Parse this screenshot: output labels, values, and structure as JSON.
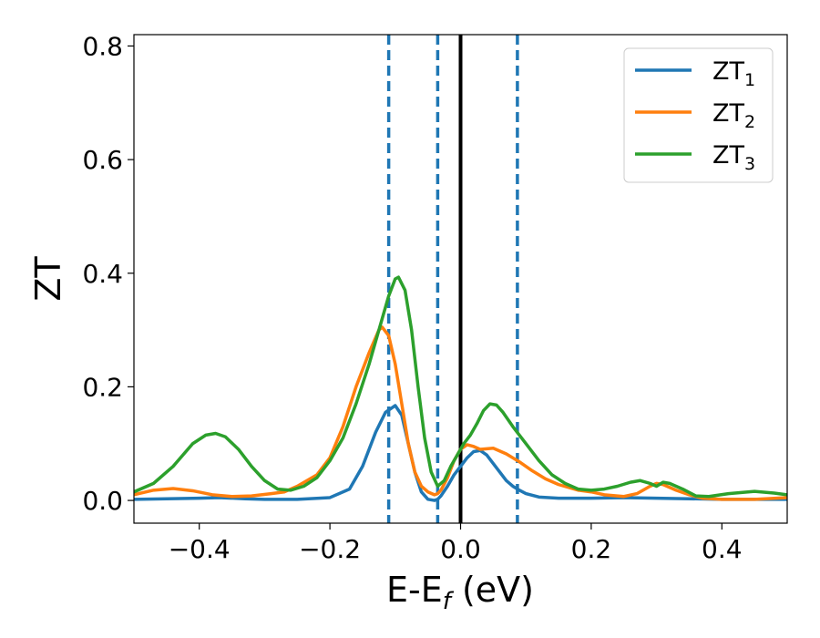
{
  "chart_data": {
    "type": "line",
    "title": "",
    "xlabel": "E-E",
    "xlabel_sub": "f",
    "xlabel_unit": " (eV)",
    "ylabel": "ZT",
    "xlim": [
      -0.5,
      0.5
    ],
    "ylim": [
      -0.04,
      0.82
    ],
    "xticks": [
      -0.4,
      -0.2,
      0.0,
      0.2,
      0.4
    ],
    "xtick_labels": [
      "−0.4",
      "−0.2",
      "0.0",
      "0.2",
      "0.4"
    ],
    "yticks": [
      0.0,
      0.2,
      0.4,
      0.6,
      0.8
    ],
    "ytick_labels": [
      "0.0",
      "0.2",
      "0.4",
      "0.6",
      "0.8"
    ],
    "grid": false,
    "legend_position": "top-right",
    "vlines": [
      {
        "x": -0.11,
        "style": "dashed",
        "color": "#1f77b4"
      },
      {
        "x": -0.035,
        "style": "dashed",
        "color": "#1f77b4"
      },
      {
        "x": 0.0,
        "style": "solid",
        "color": "#000000"
      },
      {
        "x": 0.087,
        "style": "dashed",
        "color": "#1f77b4"
      }
    ],
    "series": [
      {
        "name": "ZT",
        "name_sub": "1",
        "color": "#1f77b4",
        "points": [
          [
            -0.5,
            0.002
          ],
          [
            -0.45,
            0.003
          ],
          [
            -0.4,
            0.004
          ],
          [
            -0.37,
            0.005
          ],
          [
            -0.33,
            0.003
          ],
          [
            -0.3,
            0.002
          ],
          [
            -0.25,
            0.002
          ],
          [
            -0.2,
            0.005
          ],
          [
            -0.17,
            0.02
          ],
          [
            -0.15,
            0.06
          ],
          [
            -0.13,
            0.12
          ],
          [
            -0.115,
            0.155
          ],
          [
            -0.1,
            0.167
          ],
          [
            -0.09,
            0.15
          ],
          [
            -0.08,
            0.1
          ],
          [
            -0.07,
            0.05
          ],
          [
            -0.06,
            0.015
          ],
          [
            -0.05,
            0.002
          ],
          [
            -0.04,
            0.0
          ],
          [
            -0.035,
            0.002
          ],
          [
            -0.03,
            0.008
          ],
          [
            -0.02,
            0.025
          ],
          [
            -0.01,
            0.045
          ],
          [
            0.0,
            0.06
          ],
          [
            0.01,
            0.075
          ],
          [
            0.02,
            0.086
          ],
          [
            0.03,
            0.088
          ],
          [
            0.04,
            0.08
          ],
          [
            0.05,
            0.065
          ],
          [
            0.06,
            0.05
          ],
          [
            0.07,
            0.035
          ],
          [
            0.08,
            0.025
          ],
          [
            0.09,
            0.018
          ],
          [
            0.1,
            0.012
          ],
          [
            0.12,
            0.006
          ],
          [
            0.15,
            0.004
          ],
          [
            0.2,
            0.004
          ],
          [
            0.25,
            0.005
          ],
          [
            0.3,
            0.004
          ],
          [
            0.35,
            0.003
          ],
          [
            0.4,
            0.002
          ],
          [
            0.45,
            0.002
          ],
          [
            0.5,
            0.002
          ]
        ]
      },
      {
        "name": "ZT",
        "name_sub": "2",
        "color": "#ff7f0e",
        "points": [
          [
            -0.5,
            0.01
          ],
          [
            -0.47,
            0.018
          ],
          [
            -0.44,
            0.021
          ],
          [
            -0.41,
            0.017
          ],
          [
            -0.38,
            0.01
          ],
          [
            -0.35,
            0.007
          ],
          [
            -0.32,
            0.008
          ],
          [
            -0.29,
            0.012
          ],
          [
            -0.27,
            0.015
          ],
          [
            -0.25,
            0.025
          ],
          [
            -0.22,
            0.045
          ],
          [
            -0.2,
            0.075
          ],
          [
            -0.18,
            0.13
          ],
          [
            -0.16,
            0.2
          ],
          [
            -0.14,
            0.26
          ],
          [
            -0.125,
            0.3
          ],
          [
            -0.12,
            0.305
          ],
          [
            -0.11,
            0.29
          ],
          [
            -0.1,
            0.24
          ],
          [
            -0.09,
            0.17
          ],
          [
            -0.08,
            0.1
          ],
          [
            -0.07,
            0.05
          ],
          [
            -0.06,
            0.025
          ],
          [
            -0.05,
            0.015
          ],
          [
            -0.04,
            0.01
          ],
          [
            -0.035,
            0.012
          ],
          [
            -0.03,
            0.018
          ],
          [
            -0.02,
            0.04
          ],
          [
            -0.01,
            0.07
          ],
          [
            0.0,
            0.09
          ],
          [
            0.01,
            0.098
          ],
          [
            0.02,
            0.095
          ],
          [
            0.03,
            0.09
          ],
          [
            0.05,
            0.092
          ],
          [
            0.07,
            0.082
          ],
          [
            0.09,
            0.068
          ],
          [
            0.11,
            0.052
          ],
          [
            0.13,
            0.038
          ],
          [
            0.15,
            0.028
          ],
          [
            0.18,
            0.018
          ],
          [
            0.2,
            0.015
          ],
          [
            0.22,
            0.01
          ],
          [
            0.25,
            0.007
          ],
          [
            0.27,
            0.012
          ],
          [
            0.29,
            0.025
          ],
          [
            0.3,
            0.03
          ],
          [
            0.31,
            0.028
          ],
          [
            0.33,
            0.018
          ],
          [
            0.35,
            0.01
          ],
          [
            0.37,
            0.004
          ],
          [
            0.4,
            0.002
          ],
          [
            0.45,
            0.002
          ],
          [
            0.5,
            0.005
          ]
        ]
      },
      {
        "name": "ZT",
        "name_sub": "3",
        "color": "#2ca02c",
        "points": [
          [
            -0.5,
            0.015
          ],
          [
            -0.47,
            0.03
          ],
          [
            -0.44,
            0.06
          ],
          [
            -0.41,
            0.1
          ],
          [
            -0.39,
            0.115
          ],
          [
            -0.375,
            0.118
          ],
          [
            -0.36,
            0.112
          ],
          [
            -0.34,
            0.09
          ],
          [
            -0.32,
            0.06
          ],
          [
            -0.3,
            0.035
          ],
          [
            -0.28,
            0.02
          ],
          [
            -0.26,
            0.018
          ],
          [
            -0.24,
            0.025
          ],
          [
            -0.22,
            0.04
          ],
          [
            -0.2,
            0.07
          ],
          [
            -0.18,
            0.11
          ],
          [
            -0.16,
            0.17
          ],
          [
            -0.14,
            0.24
          ],
          [
            -0.12,
            0.32
          ],
          [
            -0.11,
            0.36
          ],
          [
            -0.1,
            0.39
          ],
          [
            -0.095,
            0.393
          ],
          [
            -0.085,
            0.37
          ],
          [
            -0.075,
            0.3
          ],
          [
            -0.065,
            0.2
          ],
          [
            -0.055,
            0.11
          ],
          [
            -0.045,
            0.05
          ],
          [
            -0.035,
            0.025
          ],
          [
            -0.025,
            0.035
          ],
          [
            -0.015,
            0.06
          ],
          [
            -0.005,
            0.08
          ],
          [
            0.005,
            0.1
          ],
          [
            0.015,
            0.115
          ],
          [
            0.025,
            0.135
          ],
          [
            0.035,
            0.158
          ],
          [
            0.045,
            0.17
          ],
          [
            0.055,
            0.168
          ],
          [
            0.065,
            0.155
          ],
          [
            0.08,
            0.13
          ],
          [
            0.1,
            0.1
          ],
          [
            0.12,
            0.07
          ],
          [
            0.14,
            0.045
          ],
          [
            0.16,
            0.03
          ],
          [
            0.18,
            0.02
          ],
          [
            0.2,
            0.018
          ],
          [
            0.22,
            0.02
          ],
          [
            0.24,
            0.025
          ],
          [
            0.26,
            0.032
          ],
          [
            0.275,
            0.035
          ],
          [
            0.29,
            0.03
          ],
          [
            0.3,
            0.025
          ],
          [
            0.31,
            0.032
          ],
          [
            0.32,
            0.03
          ],
          [
            0.34,
            0.02
          ],
          [
            0.36,
            0.008
          ],
          [
            0.38,
            0.007
          ],
          [
            0.41,
            0.012
          ],
          [
            0.45,
            0.016
          ],
          [
            0.48,
            0.013
          ],
          [
            0.5,
            0.01
          ]
        ]
      }
    ]
  }
}
